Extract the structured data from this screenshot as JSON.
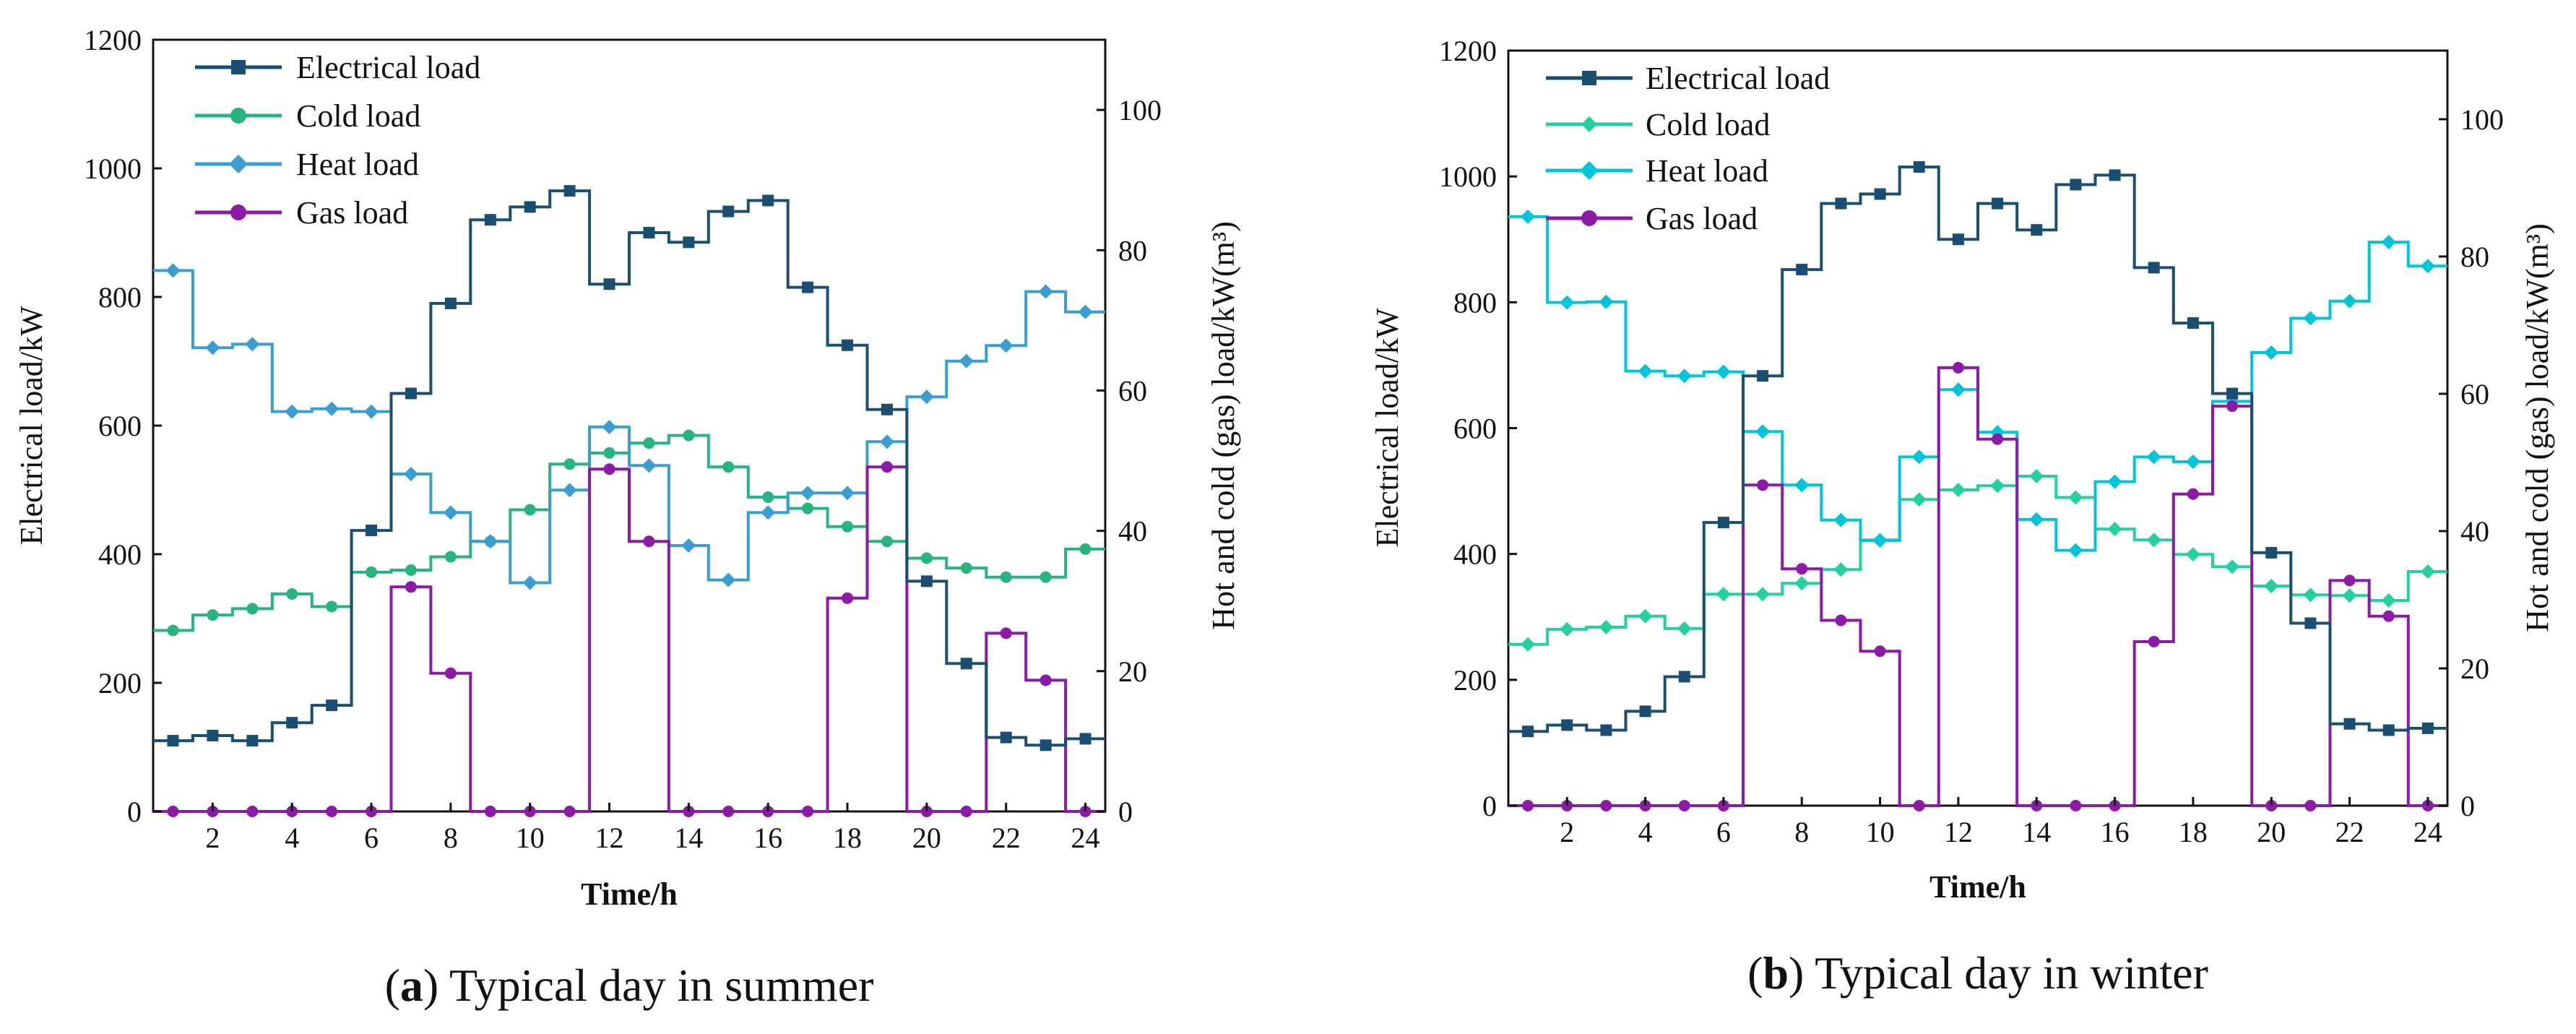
{
  "colors": {
    "electrical": "#1b4f72",
    "cold_summer": "#27b47f",
    "heat_summer": "#3a9fd0",
    "cold_winter": "#25d0a0",
    "heat_winter": "#00c4d8",
    "gas": "#8b1aa6",
    "axis": "#111111"
  },
  "chart_data": [
    {
      "type": "line",
      "step": true,
      "panel_label": "a",
      "caption": "Typical day in summer",
      "xlabel": "Time/h",
      "ylabel": "Electrical load/kW",
      "ylabel_right": "Hot and cold (gas) load/kW(m³)",
      "xlim": [
        0.5,
        24.5
      ],
      "ylim": [
        0,
        1200
      ],
      "ylim_right": [
        0,
        110
      ],
      "xticks": [
        2,
        4,
        6,
        8,
        10,
        12,
        14,
        16,
        18,
        20,
        22,
        24
      ],
      "yticks": [
        0,
        200,
        400,
        600,
        800,
        1000,
        1200
      ],
      "yticks_right": [
        0,
        20,
        40,
        60,
        80,
        100
      ],
      "legend_position": "top-left",
      "x": [
        1,
        2,
        3,
        4,
        5,
        6,
        7,
        8,
        9,
        10,
        11,
        12,
        13,
        14,
        15,
        16,
        17,
        18,
        19,
        20,
        21,
        22,
        23,
        24
      ],
      "series": [
        {
          "key": "electrical",
          "name": "Electrical load",
          "axis": "left",
          "marker": "square",
          "values": [
            110,
            118,
            110,
            138,
            165,
            437,
            650,
            790,
            920,
            940,
            965,
            820,
            900,
            885,
            933,
            950,
            815,
            725,
            625,
            358,
            230,
            115,
            103,
            113
          ]
        },
        {
          "key": "cold",
          "name": "Cold load",
          "axis": "right",
          "marker": "circle",
          "values": [
            25.8,
            28.0,
            28.9,
            31.0,
            29.2,
            34.1,
            34.4,
            36.3,
            38.5,
            43.0,
            49.5,
            51.1,
            52.5,
            53.6,
            49.1,
            44.8,
            43.2,
            40.6,
            38.5,
            36.1,
            34.7,
            33.4,
            33.4,
            37.4
          ]
        },
        {
          "key": "heat",
          "name": "Heat load",
          "axis": "right",
          "marker": "diamond",
          "values": [
            77.1,
            66.1,
            66.6,
            57.0,
            57.4,
            57.0,
            48.1,
            42.6,
            38.5,
            32.6,
            45.8,
            54.8,
            49.3,
            37.9,
            33.0,
            42.6,
            45.4,
            45.4,
            52.7,
            59.1,
            64.2,
            66.4,
            74.1,
            71.2
          ]
        },
        {
          "key": "gas",
          "name": "Gas load",
          "axis": "right",
          "marker": "circle",
          "values": [
            0,
            0,
            0,
            0,
            0,
            0,
            32.0,
            19.7,
            0,
            0,
            0,
            48.8,
            38.5,
            0,
            0,
            0,
            0,
            30.4,
            49.1,
            0,
            0,
            25.4,
            18.7,
            0
          ]
        }
      ]
    },
    {
      "type": "line",
      "step": true,
      "panel_label": "b",
      "caption": "Typical day in winter",
      "xlabel": "Time/h",
      "ylabel": "Electrical load/kW",
      "ylabel_right": "Hot and cold (gas) load/kW(m³)",
      "xlim": [
        0.5,
        24.5
      ],
      "ylim": [
        0,
        1200
      ],
      "ylim_right": [
        0,
        110
      ],
      "xticks": [
        2,
        4,
        6,
        8,
        10,
        12,
        14,
        16,
        18,
        20,
        22,
        24
      ],
      "yticks": [
        0,
        200,
        400,
        600,
        800,
        1000,
        1200
      ],
      "yticks_right": [
        0,
        20,
        40,
        60,
        80,
        100
      ],
      "legend_position": "top-left",
      "x": [
        1,
        2,
        3,
        4,
        5,
        6,
        7,
        8,
        9,
        10,
        11,
        12,
        13,
        14,
        15,
        16,
        17,
        18,
        19,
        20,
        21,
        22,
        23,
        24
      ],
      "series": [
        {
          "key": "electrical",
          "name": "Electrical load",
          "axis": "left",
          "marker": "square",
          "values": [
            118,
            128,
            120,
            150,
            205,
            450,
            683,
            852,
            957,
            972,
            1015,
            900,
            957,
            915,
            987,
            1002,
            855,
            767,
            655,
            402,
            290,
            130,
            120,
            123
          ]
        },
        {
          "key": "cold",
          "name": "Cold load",
          "axis": "right",
          "marker": "diamond",
          "values": [
            23.5,
            25.7,
            26.0,
            27.6,
            25.8,
            30.8,
            30.8,
            32.4,
            34.4,
            38.7,
            44.6,
            46.0,
            46.6,
            48.0,
            44.9,
            40.3,
            38.7,
            36.6,
            34.8,
            32.0,
            30.7,
            30.6,
            29.9,
            34.1
          ]
        },
        {
          "key": "heat",
          "name": "Heat load",
          "axis": "right",
          "marker": "diamond",
          "values": [
            85.8,
            73.3,
            73.4,
            63.3,
            62.6,
            63.2,
            54.5,
            46.7,
            41.6,
            38.6,
            50.8,
            60.6,
            54.4,
            41.7,
            37.2,
            47.2,
            50.8,
            50.1,
            58.9,
            66.0,
            71.0,
            73.5,
            82.1,
            78.6
          ]
        },
        {
          "key": "gas",
          "name": "Gas load",
          "axis": "right",
          "marker": "circle",
          "values": [
            0,
            0,
            0,
            0,
            0,
            0,
            46.7,
            34.5,
            27.0,
            22.5,
            0,
            63.8,
            53.4,
            0,
            0,
            0,
            23.9,
            45.4,
            58.2,
            0,
            0,
            32.8,
            27.6,
            0
          ]
        }
      ]
    }
  ]
}
